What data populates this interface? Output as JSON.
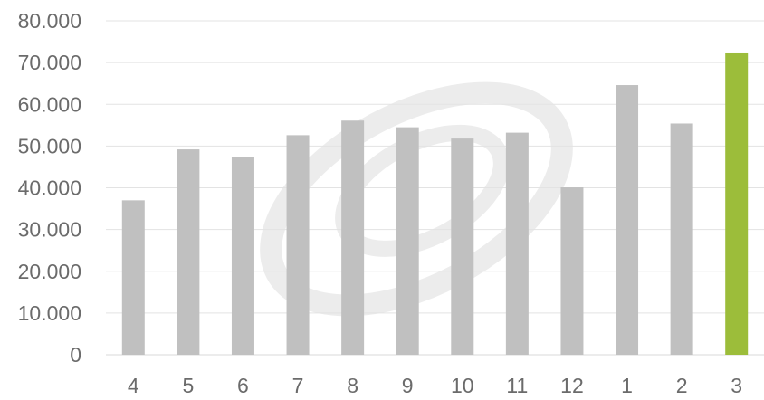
{
  "chart_data": {
    "type": "bar",
    "title": "",
    "xlabel": "",
    "ylabel": "",
    "categories": [
      "4",
      "5",
      "6",
      "7",
      "8",
      "9",
      "10",
      "11",
      "12",
      "1",
      "2",
      "3"
    ],
    "values": [
      37000,
      49200,
      47300,
      52600,
      56100,
      54500,
      51800,
      53200,
      40100,
      64600,
      55400,
      72200
    ],
    "highlight_index": 11,
    "ylim": [
      0,
      80000
    ],
    "yticks": [
      0,
      10000,
      20000,
      30000,
      40000,
      50000,
      60000,
      70000,
      80000
    ],
    "ytick_labels": [
      "0",
      "10.000",
      "20.000",
      "30.000",
      "40.000",
      "50.000",
      "60.000",
      "70.000",
      "80.000"
    ],
    "grid": true,
    "legend": "none",
    "colors": {
      "bar": "#c0c0c0",
      "highlight": "#9cbd3a",
      "watermark": "#ececec"
    }
  }
}
